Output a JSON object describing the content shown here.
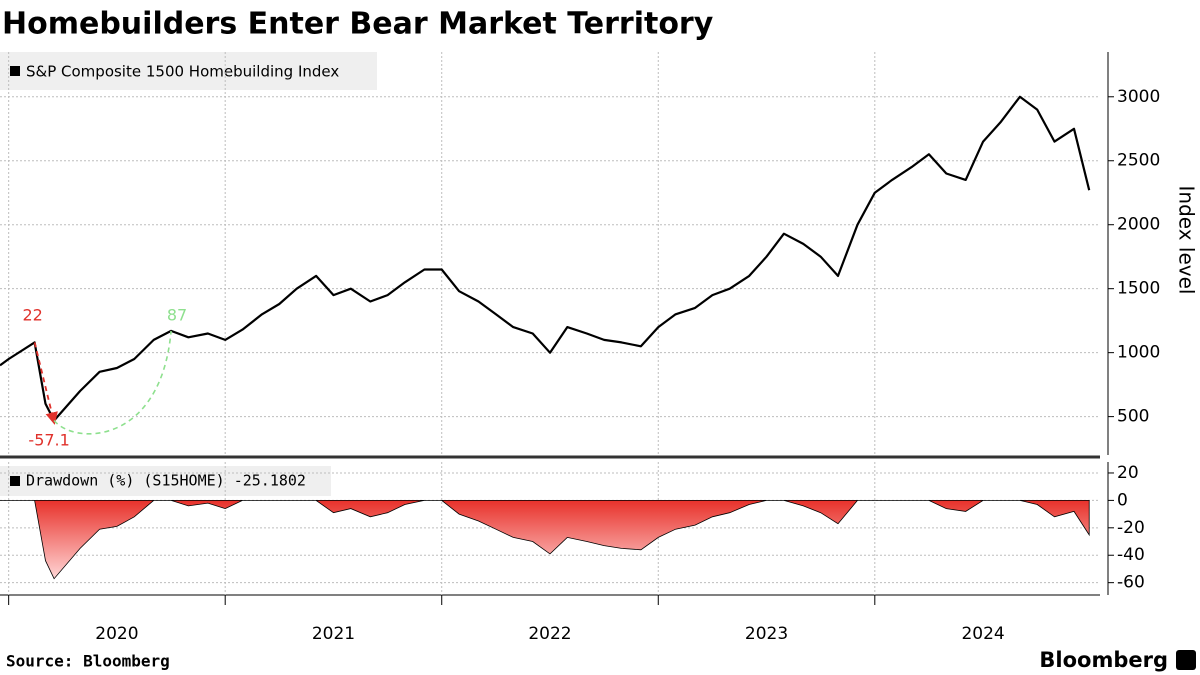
{
  "chart_data": [
    {
      "type": "line",
      "title": "Homebuilders Enter Bear Market Territory",
      "y_axis_label": "Index level",
      "x": [
        2019.96,
        2020.0,
        2020.12,
        2020.17,
        2020.21,
        2020.33,
        2020.42,
        2020.5,
        2020.58,
        2020.67,
        2020.75,
        2020.83,
        2020.92,
        2021.0,
        2021.08,
        2021.17,
        2021.25,
        2021.33,
        2021.42,
        2021.5,
        2021.58,
        2021.67,
        2021.75,
        2021.83,
        2021.92,
        2022.0,
        2022.08,
        2022.17,
        2022.25,
        2022.33,
        2022.42,
        2022.5,
        2022.58,
        2022.67,
        2022.75,
        2022.83,
        2022.92,
        2023.0,
        2023.08,
        2023.17,
        2023.25,
        2023.33,
        2023.42,
        2023.5,
        2023.58,
        2023.67,
        2023.75,
        2023.83,
        2023.92,
        2024.0,
        2024.08,
        2024.17,
        2024.25,
        2024.33,
        2024.42,
        2024.5,
        2024.58,
        2024.67,
        2024.75,
        2024.83,
        2024.92,
        2024.99
      ],
      "series": [
        {
          "name": "S&P Composite 1500 Homebuilding Index",
          "color": "#000000",
          "values": [
            900,
            950,
            1080,
            600,
            470,
            700,
            850,
            880,
            950,
            1100,
            1170,
            1120,
            1150,
            1100,
            1180,
            1300,
            1380,
            1500,
            1600,
            1450,
            1500,
            1400,
            1450,
            1550,
            1650,
            1650,
            1480,
            1400,
            1300,
            1200,
            1150,
            1000,
            1200,
            1150,
            1100,
            1080,
            1050,
            1200,
            1300,
            1350,
            1450,
            1500,
            1600,
            1750,
            1930,
            1850,
            1750,
            1600,
            2000,
            2250,
            2350,
            2450,
            2550,
            2400,
            2350,
            2650,
            2800,
            3000,
            2900,
            2650,
            2750,
            2270
          ]
        }
      ],
      "xlim": [
        2019.96,
        2025.04
      ],
      "ylim": [
        200,
        3350
      ],
      "yticks": [
        500,
        1000,
        1500,
        2000,
        2500,
        3000
      ],
      "grid": true,
      "annotations": [
        {
          "text": "22",
          "color": "#e0312b"
        },
        {
          "text": "87",
          "color": "#8ee08e"
        },
        {
          "text": "-57.1",
          "color": "#e0312b"
        }
      ]
    },
    {
      "type": "area",
      "x": [
        2019.96,
        2020.0,
        2020.12,
        2020.17,
        2020.21,
        2020.33,
        2020.42,
        2020.5,
        2020.58,
        2020.67,
        2020.75,
        2020.83,
        2020.92,
        2021.0,
        2021.08,
        2021.17,
        2021.25,
        2021.33,
        2021.42,
        2021.5,
        2021.58,
        2021.67,
        2021.75,
        2021.83,
        2021.92,
        2022.0,
        2022.08,
        2022.17,
        2022.25,
        2022.33,
        2022.42,
        2022.5,
        2022.58,
        2022.67,
        2022.75,
        2022.83,
        2022.92,
        2023.0,
        2023.08,
        2023.17,
        2023.25,
        2023.33,
        2023.42,
        2023.5,
        2023.58,
        2023.67,
        2023.75,
        2023.83,
        2023.92,
        2024.0,
        2024.08,
        2024.17,
        2024.25,
        2024.33,
        2024.42,
        2024.5,
        2024.58,
        2024.67,
        2024.75,
        2024.83,
        2024.92,
        2024.99
      ],
      "series": [
        {
          "name": "Drawdown (%) (S15HOME) -25.1802",
          "color": "#e8322b",
          "values": [
            0,
            0,
            0,
            -44,
            -57.1,
            -35,
            -21,
            -19,
            -12,
            0,
            0,
            -4,
            -2,
            -6,
            0,
            0,
            0,
            0,
            0,
            -9,
            -6,
            -12,
            -9,
            -3,
            0,
            0,
            -10,
            -15,
            -21,
            -27,
            -30,
            -39,
            -27,
            -30,
            -33,
            -35,
            -36,
            -27,
            -21,
            -18,
            -12,
            -9,
            -3,
            0,
            0,
            -4,
            -9,
            -17,
            0,
            0,
            0,
            0,
            0,
            -6,
            -8,
            0,
            0,
            0,
            -3,
            -12,
            -8,
            -25.2
          ]
        }
      ],
      "xlim": [
        2019.96,
        2025.04
      ],
      "ylim": [
        -69,
        28
      ],
      "yticks": [
        20,
        0,
        -20,
        -40,
        -60
      ],
      "xticks": [
        2020,
        2021,
        2022,
        2023,
        2024
      ],
      "grid": true
    }
  ],
  "source": "Source: Bloomberg",
  "brand": "Bloomberg"
}
